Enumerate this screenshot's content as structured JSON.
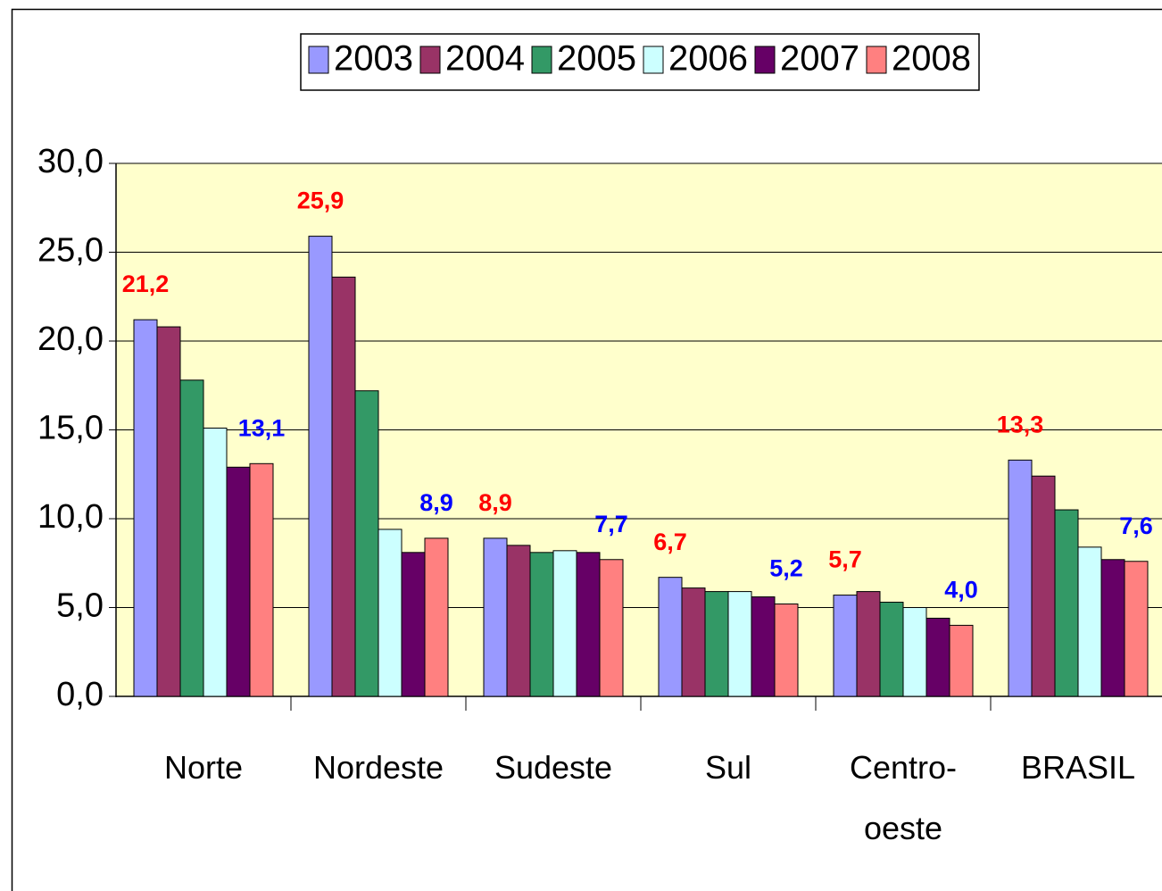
{
  "chart_data": {
    "type": "bar",
    "categories": [
      "Norte",
      "Nordeste",
      "Sudeste",
      "Sul",
      "Centro-oeste",
      "BRASIL"
    ],
    "series": [
      {
        "name": "2003",
        "color": "#9999ff",
        "label_color": "#ff0000",
        "values": [
          21.2,
          25.9,
          8.9,
          6.7,
          5.7,
          13.3
        ],
        "value_labels": [
          "21,2",
          "25,9",
          "8,9",
          "6,7",
          "5,7",
          "13,3"
        ]
      },
      {
        "name": "2004",
        "color": "#993366",
        "values": [
          20.8,
          23.6,
          8.5,
          6.1,
          5.9,
          12.4
        ]
      },
      {
        "name": "2005",
        "color": "#339966",
        "values": [
          17.8,
          17.2,
          8.1,
          5.9,
          5.3,
          10.5
        ]
      },
      {
        "name": "2006",
        "color": "#ccffff",
        "values": [
          15.1,
          9.4,
          8.2,
          5.9,
          5.0,
          8.4
        ]
      },
      {
        "name": "2007",
        "color": "#660066",
        "values": [
          12.9,
          8.1,
          8.1,
          5.6,
          4.4,
          7.7
        ]
      },
      {
        "name": "2008",
        "color": "#ff8080",
        "label_color": "#0000ff",
        "values": [
          13.1,
          8.9,
          7.7,
          5.2,
          4.0,
          7.6
        ],
        "value_labels": [
          "13,1",
          "8,9",
          "7,7",
          "5,2",
          "4,0",
          "7,6"
        ]
      }
    ],
    "ylim": [
      0,
      30
    ],
    "yticks": [
      {
        "value": 0,
        "label": "0,0"
      },
      {
        "value": 5,
        "label": "5,0"
      },
      {
        "value": 10,
        "label": "10,0"
      },
      {
        "value": 15,
        "label": "15,0"
      },
      {
        "value": 20,
        "label": "20,0"
      },
      {
        "value": 25,
        "label": "25,0"
      },
      {
        "value": 30,
        "label": "30,0"
      }
    ],
    "grid": true,
    "plot_background": "#ffffcc",
    "legend": "top"
  }
}
